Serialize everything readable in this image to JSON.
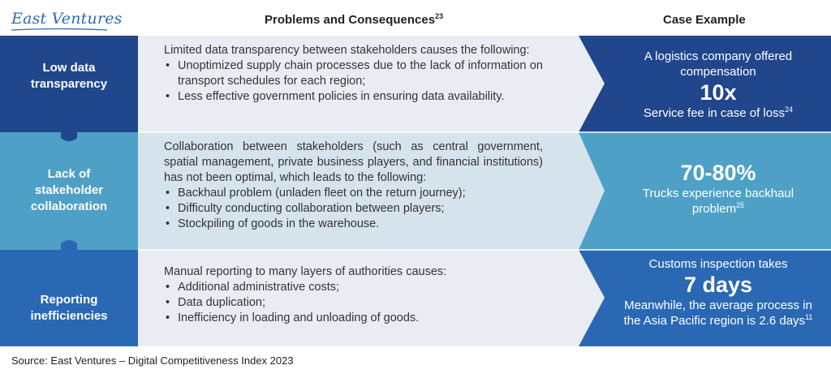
{
  "logo": "East Ventures",
  "headers": {
    "problems": "Problems and Consequences",
    "problems_ref": "23",
    "case": "Case Example"
  },
  "rows": [
    {
      "label_lines": [
        "Low data",
        "transparency"
      ],
      "intro": "Limited data transparency between stakeholders causes the following:",
      "bullets": [
        "Unoptimized supply chain processes due to the lack of information on transport schedules for each region;",
        "Less effective government policies in ensuring data availability."
      ],
      "case_top": "A logistics company offered compensation",
      "case_big": "10x",
      "case_bottom": "Service fee in case of loss",
      "case_ref": "24"
    },
    {
      "label_lines": [
        "Lack of",
        "stakeholder",
        "collaboration"
      ],
      "intro": "Collaboration between stakeholders (such as central government, spatial management, private business players, and financial institutions) has not been optimal, which leads to the following:",
      "bullets": [
        "Backhaul problem (unladen fleet on the return journey);",
        "Difficulty conducting collaboration between players;",
        "Stockpiling of goods in the warehouse."
      ],
      "case_top": "",
      "case_big": "70-80%",
      "case_bottom": "Trucks experience backhaul problem",
      "case_ref": "25"
    },
    {
      "label_lines": [
        "Reporting",
        "inefficiencies"
      ],
      "intro": "Manual reporting to many layers of authorities causes:",
      "bullets": [
        "Additional administrative costs;",
        "Data duplication;",
        "Inefficiency in loading and unloading of goods."
      ],
      "case_top": "Customs inspection takes",
      "case_big": "7 days",
      "case_bottom": "Meanwhile, the average process in the Asia Pacific region is 2.6 days",
      "case_ref": "11"
    }
  ],
  "source": "Source: East Ventures – Digital Competitiveness Index 2023",
  "colors": {
    "dark_blue": "#20468c",
    "teal": "#4ea0c6",
    "mid_blue": "#2a68b4",
    "light_panel": "#e9edf3",
    "teal_panel": "#d5e3ec"
  }
}
